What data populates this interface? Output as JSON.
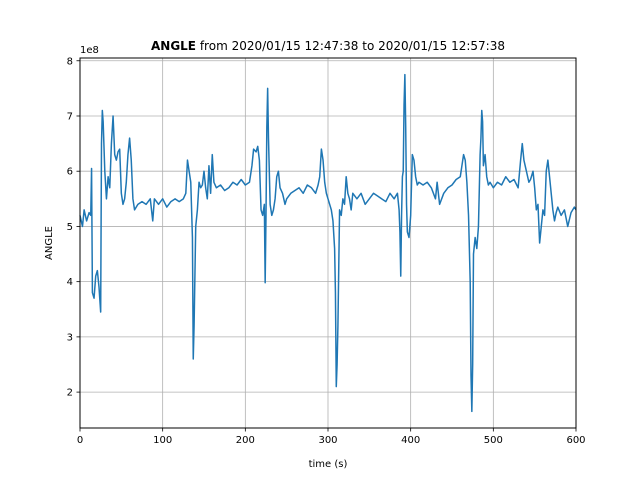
{
  "chart_data": {
    "type": "line",
    "title": {
      "bold": "ANGLE",
      "rest": " from 2020/01/15 12:47:38 to 2020/01/15 12:57:38"
    },
    "xlabel": "time (s)",
    "ylabel": "ANGLE",
    "y_offset_text": "1e8",
    "xlim": [
      0,
      600
    ],
    "ylim": [
      1.35,
      8.05
    ],
    "x_ticks": [
      0,
      100,
      200,
      300,
      400,
      500,
      600
    ],
    "y_ticks": [
      2,
      3,
      4,
      5,
      6,
      7,
      8
    ],
    "grid": true,
    "series": [
      {
        "color": "#1f77b4",
        "points": [
          [
            0,
            5.2
          ],
          [
            3,
            5.0
          ],
          [
            5,
            5.3
          ],
          [
            8,
            5.1
          ],
          [
            11,
            5.25
          ],
          [
            13,
            5.2
          ],
          [
            14,
            6.05
          ],
          [
            15,
            3.8
          ],
          [
            17,
            3.7
          ],
          [
            19,
            4.1
          ],
          [
            21,
            4.2
          ],
          [
            23,
            3.9
          ],
          [
            25,
            3.45
          ],
          [
            26,
            6.5
          ],
          [
            27,
            7.1
          ],
          [
            28,
            6.9
          ],
          [
            30,
            6.0
          ],
          [
            32,
            5.5
          ],
          [
            34,
            5.9
          ],
          [
            36,
            5.7
          ],
          [
            38,
            6.5
          ],
          [
            40,
            7.0
          ],
          [
            42,
            6.3
          ],
          [
            44,
            6.2
          ],
          [
            46,
            6.35
          ],
          [
            48,
            6.4
          ],
          [
            50,
            5.6
          ],
          [
            52,
            5.4
          ],
          [
            54,
            5.5
          ],
          [
            56,
            5.8
          ],
          [
            58,
            6.3
          ],
          [
            60,
            6.6
          ],
          [
            62,
            6.2
          ],
          [
            64,
            5.5
          ],
          [
            66,
            5.3
          ],
          [
            70,
            5.4
          ],
          [
            75,
            5.45
          ],
          [
            80,
            5.4
          ],
          [
            85,
            5.5
          ],
          [
            88,
            5.1
          ],
          [
            90,
            5.5
          ],
          [
            95,
            5.4
          ],
          [
            100,
            5.5
          ],
          [
            105,
            5.35
          ],
          [
            110,
            5.45
          ],
          [
            115,
            5.5
          ],
          [
            120,
            5.45
          ],
          [
            125,
            5.5
          ],
          [
            128,
            5.6
          ],
          [
            130,
            6.2
          ],
          [
            132,
            6.0
          ],
          [
            134,
            5.8
          ],
          [
            136,
            4.8
          ],
          [
            137,
            2.6
          ],
          [
            138,
            3.2
          ],
          [
            140,
            5.0
          ],
          [
            142,
            5.3
          ],
          [
            144,
            5.8
          ],
          [
            146,
            5.7
          ],
          [
            148,
            5.75
          ],
          [
            150,
            6.0
          ],
          [
            152,
            5.7
          ],
          [
            154,
            5.5
          ],
          [
            156,
            6.1
          ],
          [
            158,
            5.6
          ],
          [
            160,
            6.3
          ],
          [
            162,
            5.8
          ],
          [
            165,
            5.7
          ],
          [
            170,
            5.75
          ],
          [
            175,
            5.65
          ],
          [
            180,
            5.7
          ],
          [
            185,
            5.8
          ],
          [
            190,
            5.75
          ],
          [
            195,
            5.85
          ],
          [
            200,
            5.75
          ],
          [
            205,
            5.8
          ],
          [
            208,
            6.1
          ],
          [
            210,
            6.4
          ],
          [
            213,
            6.35
          ],
          [
            215,
            6.45
          ],
          [
            217,
            6.2
          ],
          [
            219,
            5.3
          ],
          [
            221,
            5.2
          ],
          [
            223,
            5.4
          ],
          [
            224,
            3.98
          ],
          [
            225,
            5.2
          ],
          [
            226,
            6.8
          ],
          [
            227,
            7.5
          ],
          [
            228,
            6.6
          ],
          [
            230,
            5.4
          ],
          [
            232,
            5.2
          ],
          [
            234,
            5.3
          ],
          [
            236,
            5.5
          ],
          [
            238,
            5.9
          ],
          [
            240,
            6.0
          ],
          [
            242,
            5.7
          ],
          [
            245,
            5.6
          ],
          [
            248,
            5.4
          ],
          [
            250,
            5.5
          ],
          [
            255,
            5.6
          ],
          [
            260,
            5.65
          ],
          [
            265,
            5.7
          ],
          [
            270,
            5.6
          ],
          [
            275,
            5.75
          ],
          [
            280,
            5.7
          ],
          [
            285,
            5.6
          ],
          [
            288,
            5.75
          ],
          [
            290,
            5.9
          ],
          [
            292,
            6.4
          ],
          [
            294,
            6.2
          ],
          [
            296,
            5.8
          ],
          [
            298,
            5.6
          ],
          [
            300,
            5.5
          ],
          [
            302,
            5.4
          ],
          [
            304,
            5.3
          ],
          [
            306,
            5.1
          ],
          [
            308,
            4.6
          ],
          [
            309,
            3.8
          ],
          [
            310,
            2.1
          ],
          [
            311,
            2.5
          ],
          [
            312,
            3.2
          ],
          [
            314,
            5.3
          ],
          [
            316,
            5.2
          ],
          [
            318,
            5.5
          ],
          [
            320,
            5.4
          ],
          [
            322,
            5.9
          ],
          [
            324,
            5.6
          ],
          [
            326,
            5.5
          ],
          [
            328,
            5.3
          ],
          [
            330,
            5.6
          ],
          [
            335,
            5.5
          ],
          [
            340,
            5.6
          ],
          [
            345,
            5.4
          ],
          [
            350,
            5.5
          ],
          [
            355,
            5.6
          ],
          [
            360,
            5.55
          ],
          [
            365,
            5.5
          ],
          [
            370,
            5.45
          ],
          [
            375,
            5.6
          ],
          [
            380,
            5.5
          ],
          [
            384,
            5.6
          ],
          [
            386,
            5.3
          ],
          [
            387,
            4.9
          ],
          [
            388,
            4.1
          ],
          [
            389,
            5.2
          ],
          [
            390,
            5.9
          ],
          [
            391,
            6.0
          ],
          [
            392,
            7.2
          ],
          [
            393,
            7.75
          ],
          [
            394,
            6.8
          ],
          [
            395,
            5.4
          ],
          [
            396,
            4.9
          ],
          [
            398,
            4.8
          ],
          [
            400,
            5.2
          ],
          [
            402,
            6.3
          ],
          [
            404,
            6.2
          ],
          [
            406,
            5.9
          ],
          [
            408,
            5.75
          ],
          [
            410,
            5.8
          ],
          [
            415,
            5.75
          ],
          [
            420,
            5.8
          ],
          [
            425,
            5.7
          ],
          [
            430,
            5.5
          ],
          [
            432,
            5.8
          ],
          [
            435,
            5.4
          ],
          [
            440,
            5.6
          ],
          [
            445,
            5.7
          ],
          [
            450,
            5.75
          ],
          [
            455,
            5.85
          ],
          [
            460,
            5.9
          ],
          [
            462,
            6.1
          ],
          [
            464,
            6.3
          ],
          [
            466,
            6.2
          ],
          [
            468,
            5.8
          ],
          [
            470,
            5.2
          ],
          [
            472,
            4.0
          ],
          [
            473,
            2.3
          ],
          [
            474,
            1.65
          ],
          [
            475,
            2.5
          ],
          [
            476,
            4.5
          ],
          [
            478,
            4.8
          ],
          [
            480,
            4.6
          ],
          [
            482,
            5.0
          ],
          [
            484,
            6.3
          ],
          [
            485,
            6.6
          ],
          [
            486,
            7.1
          ],
          [
            487,
            6.9
          ],
          [
            488,
            6.1
          ],
          [
            490,
            6.3
          ],
          [
            492,
            5.9
          ],
          [
            494,
            5.75
          ],
          [
            496,
            5.8
          ],
          [
            500,
            5.7
          ],
          [
            505,
            5.8
          ],
          [
            510,
            5.75
          ],
          [
            515,
            5.9
          ],
          [
            520,
            5.8
          ],
          [
            525,
            5.85
          ],
          [
            530,
            5.7
          ],
          [
            533,
            6.2
          ],
          [
            535,
            6.5
          ],
          [
            537,
            6.2
          ],
          [
            540,
            6.0
          ],
          [
            543,
            5.8
          ],
          [
            545,
            5.85
          ],
          [
            548,
            6.0
          ],
          [
            550,
            5.7
          ],
          [
            552,
            5.3
          ],
          [
            554,
            5.4
          ],
          [
            556,
            4.7
          ],
          [
            558,
            5.0
          ],
          [
            560,
            5.3
          ],
          [
            562,
            5.2
          ],
          [
            564,
            6.0
          ],
          [
            566,
            6.2
          ],
          [
            568,
            5.9
          ],
          [
            570,
            5.6
          ],
          [
            572,
            5.3
          ],
          [
            574,
            5.1
          ],
          [
            576,
            5.25
          ],
          [
            578,
            5.35
          ],
          [
            582,
            5.2
          ],
          [
            586,
            5.3
          ],
          [
            590,
            5.0
          ],
          [
            594,
            5.25
          ],
          [
            598,
            5.35
          ],
          [
            600,
            5.3
          ]
        ]
      }
    ]
  }
}
